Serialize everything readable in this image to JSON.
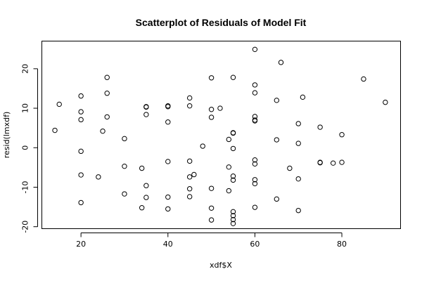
{
  "chart_data": {
    "type": "scatter",
    "title": "Scatterplot of Residuals of Model Fit",
    "xlabel": "xdf$X",
    "ylabel": "resid(lmxdf)",
    "xlim": [
      11,
      93.5
    ],
    "ylim": [
      -20.5,
      27
    ],
    "xticks": [
      20,
      40,
      60,
      80
    ],
    "yticks": [
      -20,
      -10,
      0,
      10,
      20
    ],
    "grid": false,
    "legend": "none",
    "marker": "open-circle",
    "points": [
      {
        "x": 14,
        "y": 4.4
      },
      {
        "x": 15,
        "y": 11.0
      },
      {
        "x": 20,
        "y": 13.1
      },
      {
        "x": 20,
        "y": 9.1
      },
      {
        "x": 20,
        "y": 7.1
      },
      {
        "x": 20,
        "y": -0.9
      },
      {
        "x": 20,
        "y": -6.9
      },
      {
        "x": 20,
        "y": -13.9
      },
      {
        "x": 24,
        "y": -7.4
      },
      {
        "x": 25,
        "y": 4.2
      },
      {
        "x": 26,
        "y": 17.8
      },
      {
        "x": 26,
        "y": 13.8
      },
      {
        "x": 26,
        "y": 7.8
      },
      {
        "x": 30,
        "y": 2.3
      },
      {
        "x": 30,
        "y": -4.7
      },
      {
        "x": 30,
        "y": -11.7
      },
      {
        "x": 34,
        "y": -5.2
      },
      {
        "x": 34,
        "y": -15.2
      },
      {
        "x": 35,
        "y": 10.4
      },
      {
        "x": 35,
        "y": 10.3
      },
      {
        "x": 35,
        "y": 8.4
      },
      {
        "x": 35,
        "y": -9.6
      },
      {
        "x": 35,
        "y": -12.6
      },
      {
        "x": 40,
        "y": 10.6
      },
      {
        "x": 40,
        "y": 10.4
      },
      {
        "x": 40,
        "y": 6.5
      },
      {
        "x": 40,
        "y": -3.5
      },
      {
        "x": 40,
        "y": -12.5
      },
      {
        "x": 40,
        "y": -15.5
      },
      {
        "x": 45,
        "y": 12.6
      },
      {
        "x": 45,
        "y": 10.6
      },
      {
        "x": 45,
        "y": -3.4
      },
      {
        "x": 45,
        "y": -7.4
      },
      {
        "x": 45,
        "y": -10.4
      },
      {
        "x": 45,
        "y": -12.4
      },
      {
        "x": 46,
        "y": -6.8
      },
      {
        "x": 48,
        "y": 0.4
      },
      {
        "x": 50,
        "y": 17.7
      },
      {
        "x": 50,
        "y": 9.7
      },
      {
        "x": 50,
        "y": 7.7
      },
      {
        "x": 50,
        "y": -10.3
      },
      {
        "x": 50,
        "y": -15.3
      },
      {
        "x": 50,
        "y": -18.3
      },
      {
        "x": 52,
        "y": 10.0
      },
      {
        "x": 54,
        "y": 2.1
      },
      {
        "x": 54,
        "y": -4.9
      },
      {
        "x": 54,
        "y": -10.9
      },
      {
        "x": 55,
        "y": 17.8
      },
      {
        "x": 55,
        "y": 3.8
      },
      {
        "x": 55,
        "y": 3.7
      },
      {
        "x": 55,
        "y": -0.2
      },
      {
        "x": 55,
        "y": -7.2
      },
      {
        "x": 55,
        "y": -8.2
      },
      {
        "x": 55,
        "y": -16.2
      },
      {
        "x": 55,
        "y": -17.2
      },
      {
        "x": 55,
        "y": -18.2
      },
      {
        "x": 55,
        "y": -19.2
      },
      {
        "x": 60,
        "y": 24.9
      },
      {
        "x": 60,
        "y": 15.9
      },
      {
        "x": 60,
        "y": 13.9
      },
      {
        "x": 60,
        "y": 7.9
      },
      {
        "x": 60,
        "y": 7.0
      },
      {
        "x": 60,
        "y": 6.8
      },
      {
        "x": 60,
        "y": -3.1
      },
      {
        "x": 60,
        "y": -4.1
      },
      {
        "x": 60,
        "y": -8.1
      },
      {
        "x": 60,
        "y": -9.1
      },
      {
        "x": 60,
        "y": -15.1
      },
      {
        "x": 65,
        "y": 12.0
      },
      {
        "x": 65,
        "y": 2.0
      },
      {
        "x": 65,
        "y": -13.0
      },
      {
        "x": 66,
        "y": 21.6
      },
      {
        "x": 68,
        "y": -5.2
      },
      {
        "x": 70,
        "y": 6.1
      },
      {
        "x": 70,
        "y": 1.1
      },
      {
        "x": 70,
        "y": -7.9
      },
      {
        "x": 70,
        "y": -15.9
      },
      {
        "x": 71,
        "y": 12.8
      },
      {
        "x": 75,
        "y": 5.2
      },
      {
        "x": 75,
        "y": -3.7
      },
      {
        "x": 75,
        "y": -3.8
      },
      {
        "x": 78,
        "y": -3.9
      },
      {
        "x": 80,
        "y": 3.3
      },
      {
        "x": 80,
        "y": -3.7
      },
      {
        "x": 85,
        "y": 17.4
      },
      {
        "x": 90,
        "y": 11.5
      }
    ]
  }
}
